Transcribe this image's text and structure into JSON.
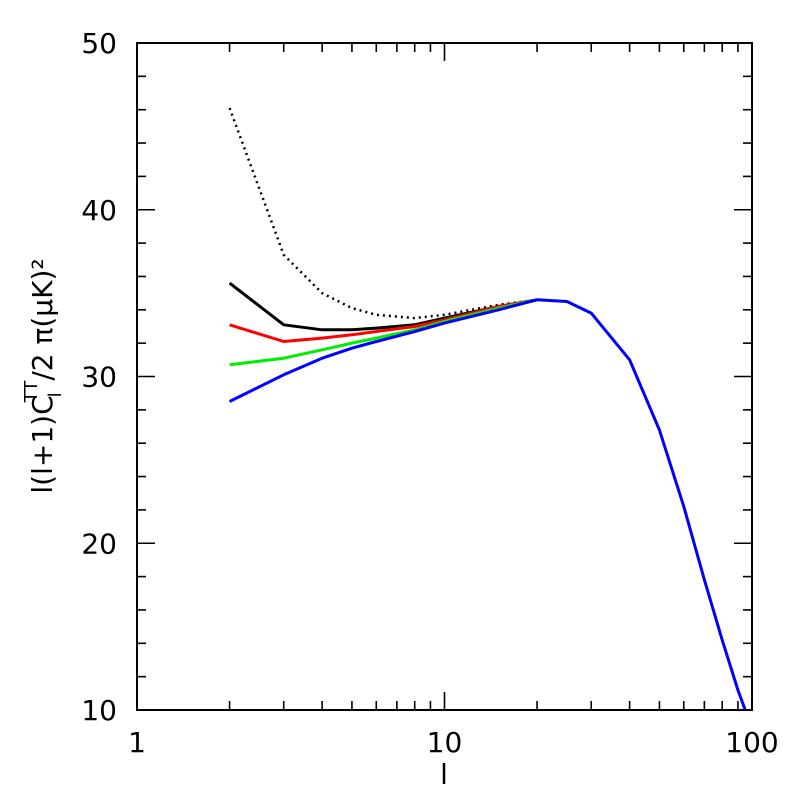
{
  "chart_data": {
    "type": "line",
    "xlabel": "l",
    "ylabel": "l(l+1)C_l^TT/2 π(μK)²",
    "ylabel_parts": {
      "prefix": "l(l+1)C",
      "sub": "l",
      "sup": "TT",
      "suffix": "/2 π(μK)²"
    },
    "xscale": "log",
    "xlim": [
      1,
      100
    ],
    "ylim": [
      10,
      50
    ],
    "x_ticks": [
      "1",
      "10",
      "100"
    ],
    "y_ticks": [
      "10",
      "20",
      "30",
      "40",
      "50"
    ],
    "grid": false,
    "series": [
      {
        "color": "#000000",
        "style": "dotted",
        "x": [
          2,
          3,
          4,
          5,
          6,
          8,
          10,
          15,
          20
        ],
        "y": [
          46.1,
          37.3,
          35.0,
          34.1,
          33.7,
          33.5,
          33.7,
          34.3,
          34.6
        ]
      },
      {
        "color": "#000000",
        "style": "solid",
        "x": [
          2,
          3,
          4,
          5,
          6,
          8,
          10,
          15,
          20
        ],
        "y": [
          35.6,
          33.1,
          32.8,
          32.8,
          32.9,
          33.1,
          33.5,
          34.2,
          34.6
        ]
      },
      {
        "color": "#ff0000",
        "style": "solid",
        "x": [
          2,
          3,
          4,
          5,
          6,
          8,
          10,
          15,
          20
        ],
        "y": [
          33.1,
          32.1,
          32.3,
          32.5,
          32.7,
          33.0,
          33.4,
          34.2,
          34.6
        ]
      },
      {
        "color": "#00ee00",
        "style": "solid",
        "x": [
          2,
          3,
          4,
          5,
          6,
          8,
          10,
          15,
          20
        ],
        "y": [
          30.7,
          31.1,
          31.6,
          32.0,
          32.3,
          32.8,
          33.3,
          34.1,
          34.6
        ]
      },
      {
        "color": "#0000ff",
        "style": "solid",
        "x": [
          2,
          3,
          4,
          5,
          6,
          8,
          10,
          15,
          20,
          25,
          30,
          40,
          50,
          60,
          70,
          80,
          90,
          95
        ],
        "y": [
          28.5,
          30.1,
          31.1,
          31.7,
          32.1,
          32.7,
          33.2,
          34.0,
          34.6,
          34.5,
          33.8,
          31.0,
          26.8,
          22.2,
          17.8,
          14.2,
          11.2,
          10.0
        ]
      }
    ]
  }
}
